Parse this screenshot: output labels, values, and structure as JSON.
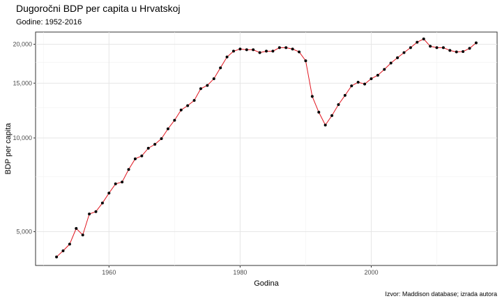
{
  "chart_data": {
    "type": "line",
    "title": "Dugoročni BDP per capita u Hrvatskoj",
    "subtitle": "Godine: 1952-2016",
    "xlabel": "Godina",
    "ylabel": "BDP per capita",
    "caption": "Izvor: Maddison database; izrada autora",
    "y_scale": "log",
    "xlim": [
      1948.8,
      2019.2
    ],
    "ylim": [
      3895,
      21885
    ],
    "x_ticks": [
      1960,
      1980,
      2000
    ],
    "x_tick_labels": [
      "1960",
      "1980",
      "2000"
    ],
    "x_minor_ticks": [
      1950,
      1970,
      1990,
      2010
    ],
    "y_ticks": [
      5000,
      10000,
      15000,
      20000
    ],
    "y_tick_labels": [
      "5,000",
      "10,000",
      "15,000",
      "20,000"
    ],
    "y_minor_ticks": [
      7500,
      12500,
      17500
    ],
    "grid": true,
    "line_color": "#e0141e",
    "point_color": "#000000",
    "series": [
      {
        "x": [
          1952,
          1953,
          1954,
          1955,
          1956,
          1957,
          1958,
          1959,
          1960,
          1961,
          1962,
          1963,
          1964,
          1965,
          1966,
          1967,
          1968,
          1969,
          1970,
          1971,
          1972,
          1973,
          1974,
          1975,
          1976,
          1977,
          1978,
          1979,
          1980,
          1981,
          1982,
          1983,
          1984,
          1985,
          1986,
          1987,
          1988,
          1989,
          1990,
          1991,
          1992,
          1993,
          1994,
          1995,
          1996,
          1997,
          1998,
          1999,
          2000,
          2001,
          2002,
          2003,
          2004,
          2005,
          2006,
          2007,
          2008,
          2009,
          2010,
          2011,
          2012,
          2013,
          2014,
          2015,
          2016
        ],
        "values": [
          4150,
          4340,
          4560,
          5120,
          4880,
          5700,
          5800,
          6180,
          6650,
          7120,
          7220,
          7920,
          8570,
          8760,
          9270,
          9540,
          9950,
          10700,
          11400,
          12300,
          12700,
          13200,
          14400,
          14750,
          15500,
          16800,
          18200,
          19000,
          19300,
          19200,
          19200,
          18800,
          19000,
          19000,
          19500,
          19500,
          19300,
          18900,
          17700,
          13600,
          12100,
          11000,
          11800,
          12800,
          13700,
          14700,
          15100,
          14900,
          15500,
          15900,
          16600,
          17400,
          18100,
          18800,
          19500,
          20300,
          20800,
          19700,
          19500,
          19500,
          19100,
          18900,
          18950,
          19400,
          20200
        ]
      }
    ]
  }
}
